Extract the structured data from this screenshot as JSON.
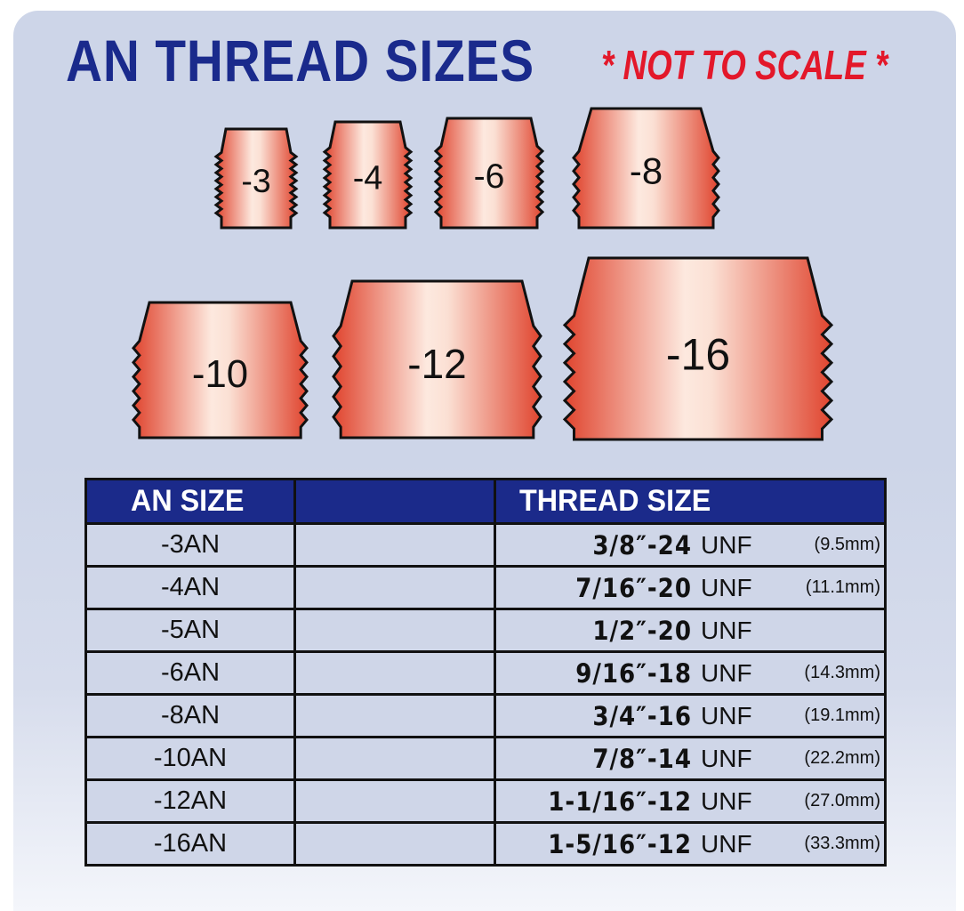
{
  "title": "AN THREAD SIZES",
  "note": "* NOT TO SCALE *",
  "colors": {
    "title": "#1a2a8c",
    "note": "#e3182a",
    "header_bg": "#1b2a8a",
    "panel": "#cdd5e8",
    "fitting": "#e8735a"
  },
  "fittings": [
    {
      "label": "-3"
    },
    {
      "label": "-4"
    },
    {
      "label": "-6"
    },
    {
      "label": "-8"
    },
    {
      "label": "-10"
    },
    {
      "label": "-12"
    },
    {
      "label": "-16"
    }
  ],
  "table": {
    "headers": [
      "AN SIZE",
      "",
      "THREAD SIZE"
    ],
    "rows": [
      {
        "an": "-3AN",
        "thread": "3/8″-24",
        "unf": "UNF",
        "mm": "(9.5mm)"
      },
      {
        "an": "-4AN",
        "thread": "7/16″-20",
        "unf": "UNF",
        "mm": "(11.1mm)"
      },
      {
        "an": "-5AN",
        "thread": "1/2″-20",
        "unf": "UNF",
        "mm": ""
      },
      {
        "an": "-6AN",
        "thread": "9/16″-18",
        "unf": "UNF",
        "mm": "(14.3mm)"
      },
      {
        "an": "-8AN",
        "thread": "3/4″-16",
        "unf": "UNF",
        "mm": "(19.1mm)"
      },
      {
        "an": "-10AN",
        "thread": "7/8″-14",
        "unf": "UNF",
        "mm": "(22.2mm)"
      },
      {
        "an": "-12AN",
        "thread": "1-1/16″-12",
        "unf": "UNF",
        "mm": "(27.0mm)"
      },
      {
        "an": "-16AN",
        "thread": "1-5/16″-12",
        "unf": "UNF",
        "mm": "(33.3mm)"
      }
    ]
  }
}
